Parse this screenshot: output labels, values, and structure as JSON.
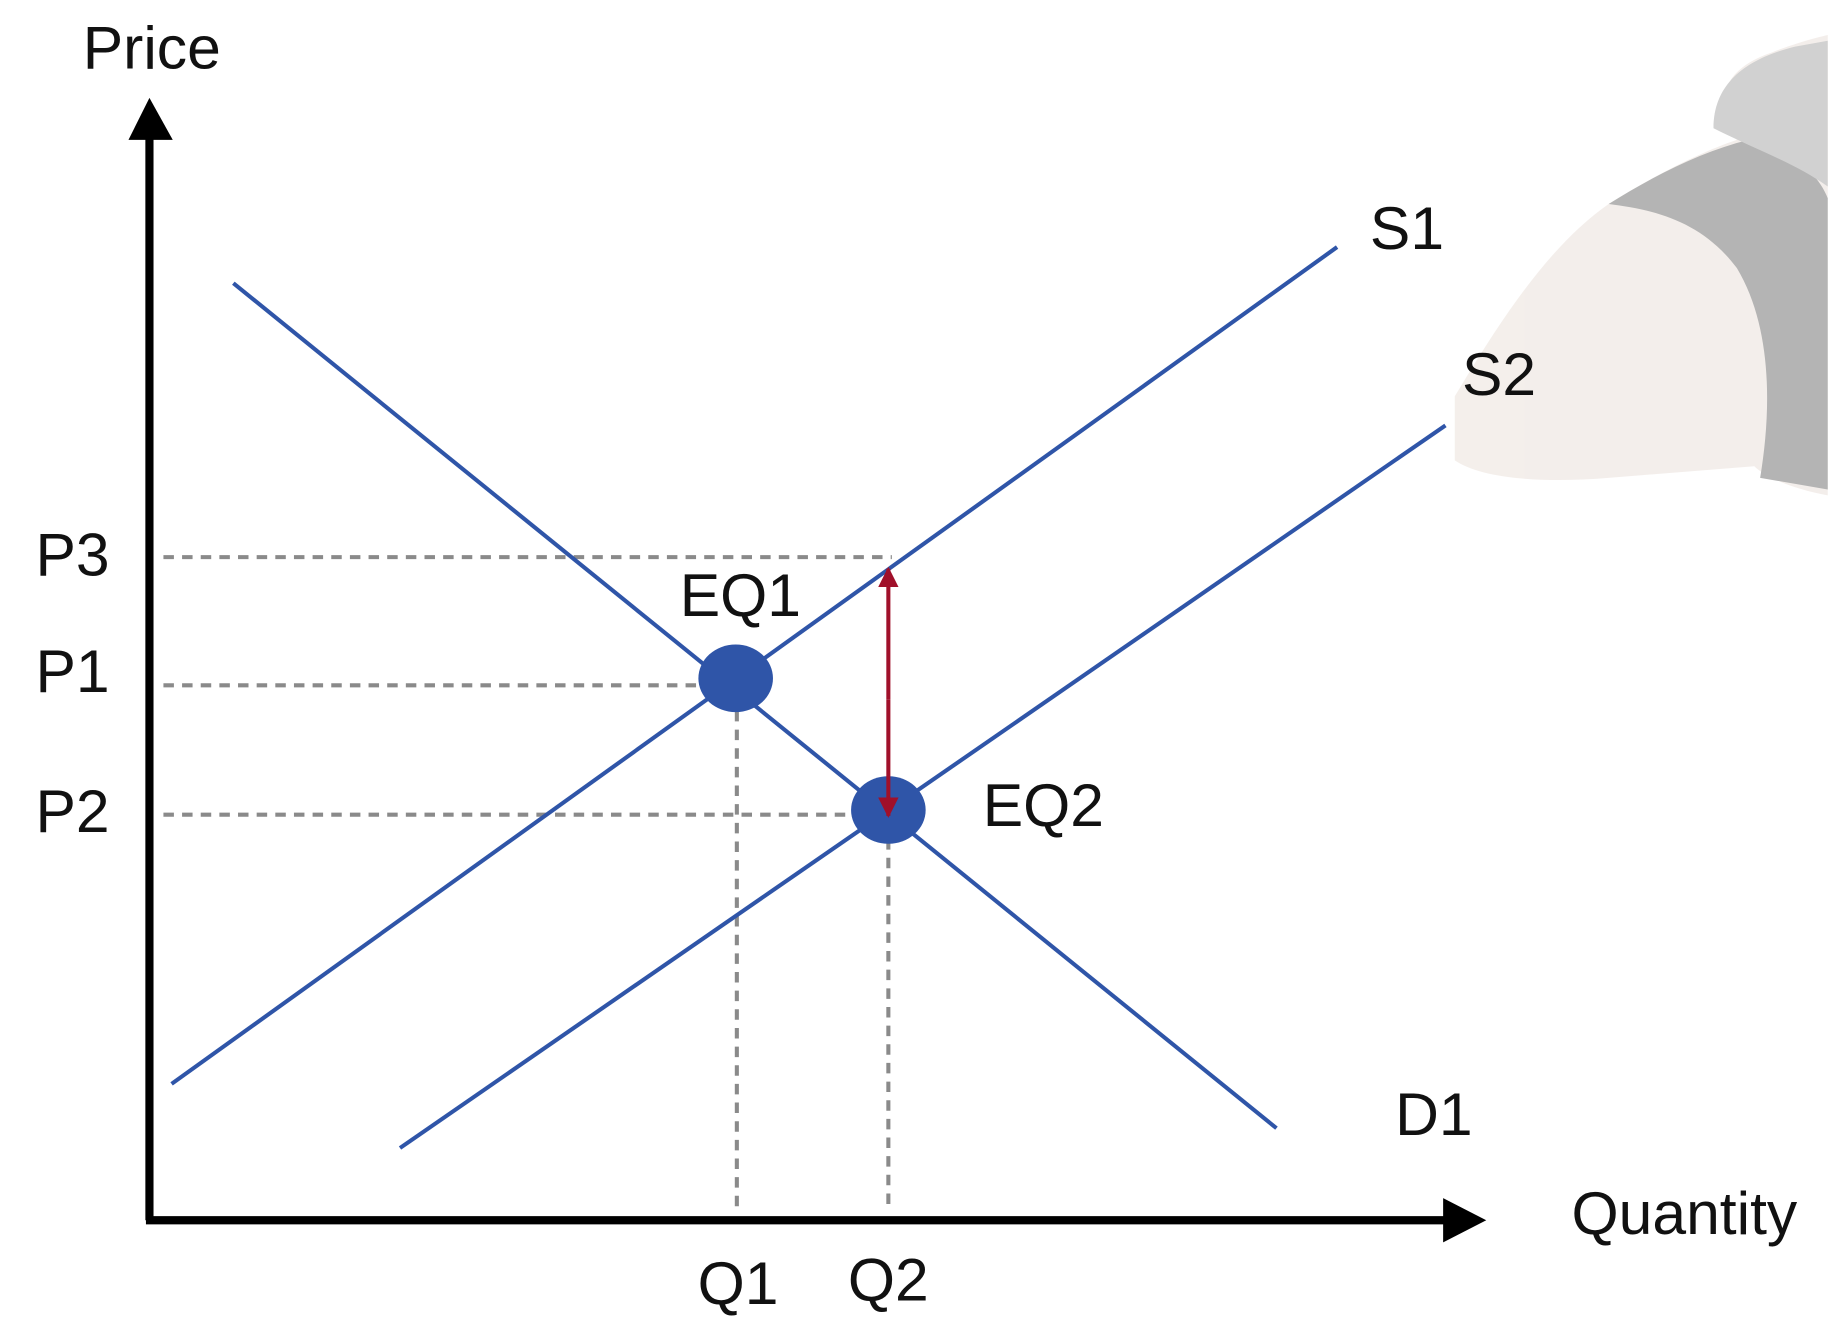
{
  "axes": {
    "y_label": "Price",
    "x_label": "Quantity"
  },
  "curves": {
    "supply_1": "S1",
    "supply_2": "S2",
    "demand_1": "D1"
  },
  "prices": [
    "P3",
    "P1",
    "P2"
  ],
  "quantities": [
    "Q1",
    "Q2"
  ],
  "equilibria": [
    "EQ1",
    "EQ2"
  ]
}
